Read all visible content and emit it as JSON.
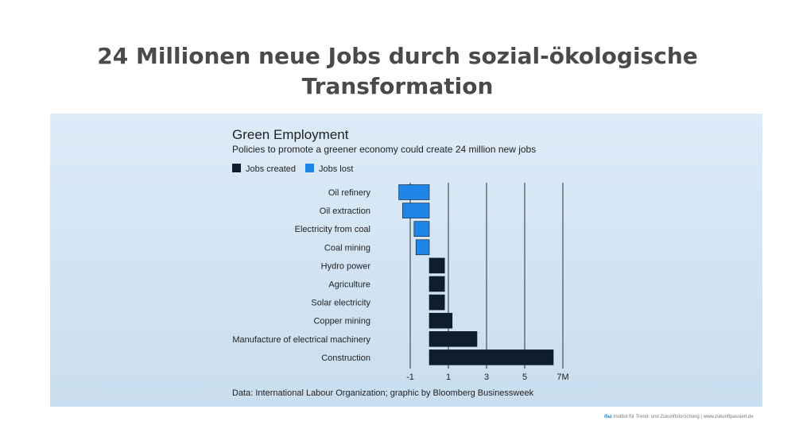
{
  "slide": {
    "title_line1": "24 Millionen neue Jobs durch sozial-ökologische",
    "title_line2": "Transformation"
  },
  "chart_data": {
    "type": "bar",
    "orientation": "horizontal",
    "title": "Green Employment",
    "subtitle": "Policies to promote a greener economy could create 24 million new jobs",
    "legend": [
      {
        "name": "Jobs created",
        "color": "#0f1e2c"
      },
      {
        "name": "Jobs lost",
        "color": "#1f85e6"
      }
    ],
    "categories": [
      "Oil refinery",
      "Oil extraction",
      "Electricity from coal",
      "Coal mining",
      "Hydro power",
      "Agriculture",
      "Solar electricity",
      "Copper mining",
      "Manufacture of electrical machinery",
      "Construction"
    ],
    "values": [
      -1.6,
      -1.4,
      -0.8,
      -0.7,
      0.8,
      0.8,
      0.8,
      1.2,
      2.5,
      6.5
    ],
    "x_ticks": [
      "-1",
      "1",
      "3",
      "5",
      "7M"
    ],
    "x_tick_values": [
      -1,
      1,
      3,
      5,
      7
    ],
    "xlim": [
      -2,
      7
    ],
    "grid": "vertical",
    "legend_position": "top-left",
    "source": "Data: International Labour Organization; graphic by Bloomberg Businessweek"
  },
  "footer": {
    "brand": "ifaz",
    "text": "Institut für Trend- und Zukunftsforschung | www.zukunftpassiert.de"
  }
}
